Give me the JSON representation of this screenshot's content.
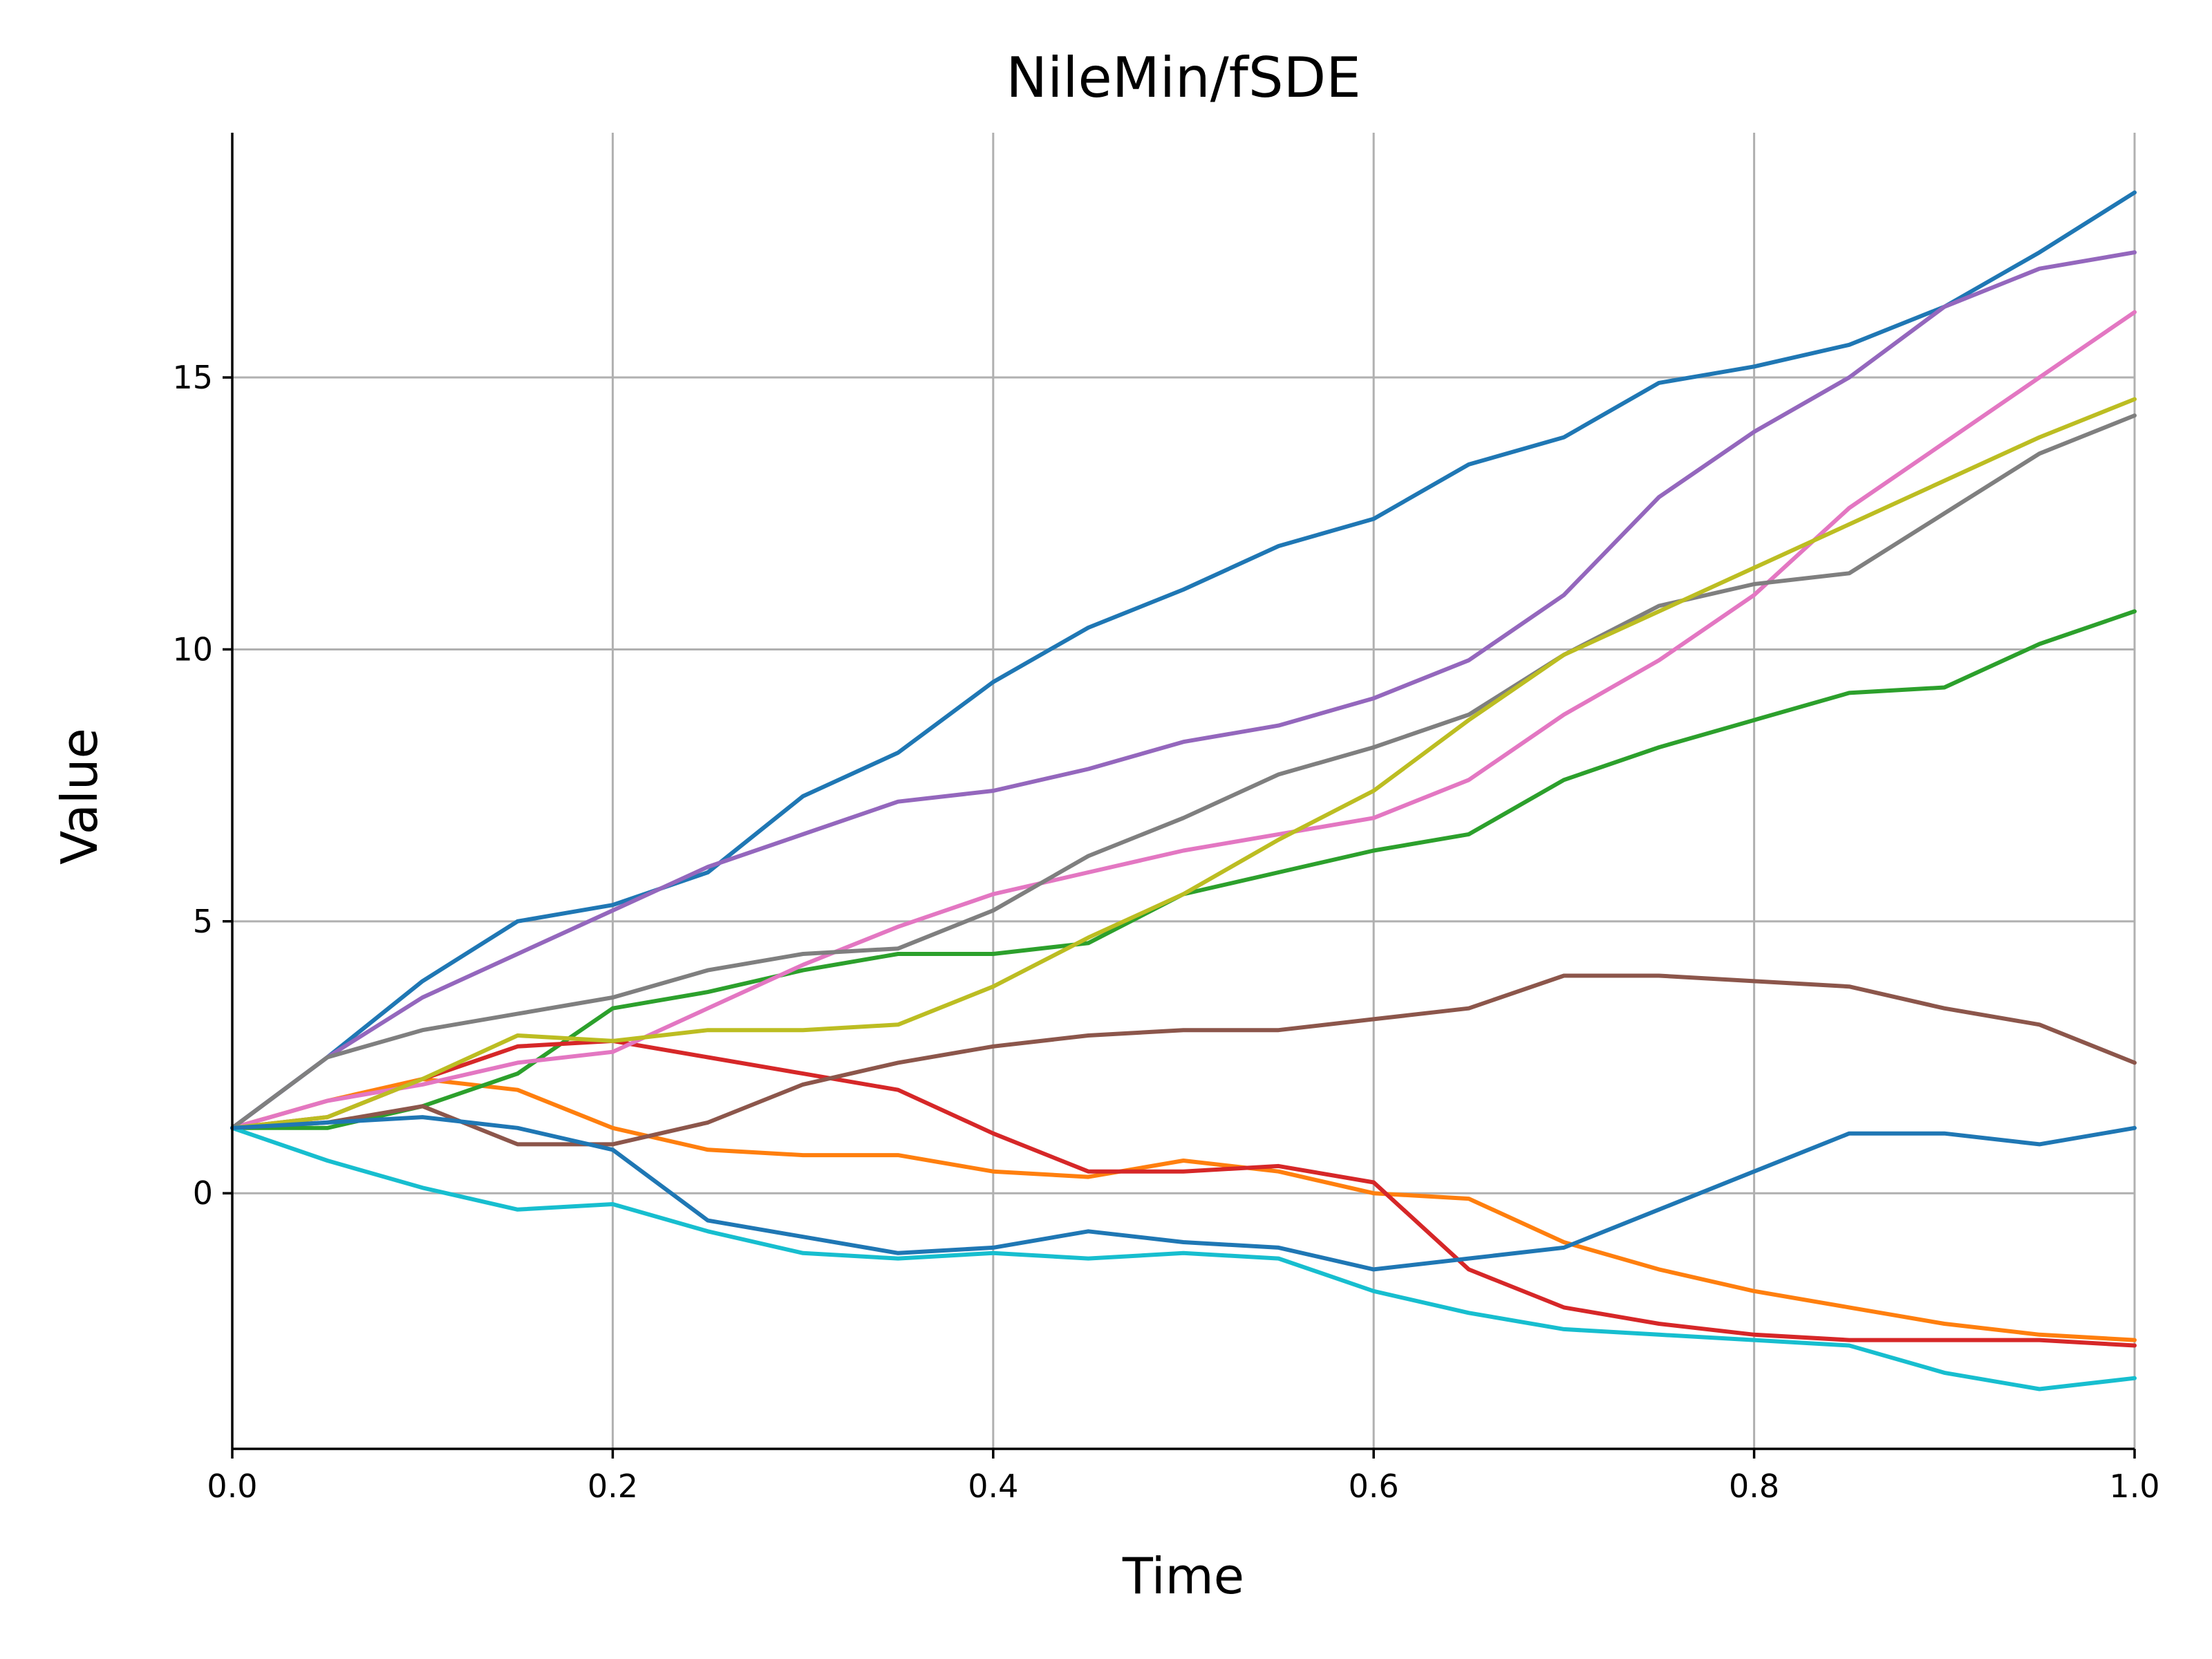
{
  "chart_data": {
    "type": "line",
    "title": "NileMin/fSDE",
    "xlabel": "Time",
    "ylabel": "Value",
    "xlim": [
      0.0,
      1.0
    ],
    "ylim": [
      -4.7,
      19.5
    ],
    "grid": true,
    "x_ticks": [
      {
        "value": 0.0,
        "label": "0.0"
      },
      {
        "value": 0.2,
        "label": "0.2"
      },
      {
        "value": 0.4,
        "label": "0.4"
      },
      {
        "value": 0.6,
        "label": "0.6"
      },
      {
        "value": 0.8,
        "label": "0.8"
      },
      {
        "value": 1.0,
        "label": "1.0"
      }
    ],
    "y_ticks": [
      {
        "value": 0,
        "label": "0"
      },
      {
        "value": 5,
        "label": "5"
      },
      {
        "value": 10,
        "label": "10"
      },
      {
        "value": 15,
        "label": "15"
      }
    ],
    "x": [
      0,
      0.05,
      0.1,
      0.15,
      0.2,
      0.25,
      0.3,
      0.35,
      0.4,
      0.45,
      0.5,
      0.55,
      0.6,
      0.65,
      0.7,
      0.75,
      0.8,
      0.85,
      0.9,
      0.95,
      1.0
    ],
    "series": [
      {
        "color": "#1f77b4",
        "values": [
          1.2,
          2.5,
          3.9,
          5.0,
          5.3,
          5.9,
          7.3,
          8.1,
          9.4,
          10.4,
          11.1,
          11.9,
          12.4,
          13.4,
          13.9,
          14.9,
          15.2,
          15.6,
          16.3,
          17.3,
          18.4
        ]
      },
      {
        "color": "#ff7f0e",
        "values": [
          1.2,
          1.7,
          2.1,
          1.9,
          1.2,
          0.8,
          0.7,
          0.7,
          0.4,
          0.3,
          0.6,
          0.4,
          0.0,
          -0.1,
          -0.9,
          -1.4,
          -1.8,
          -2.1,
          -2.4,
          -2.6,
          -2.7
        ]
      },
      {
        "color": "#2ca02c",
        "values": [
          1.2,
          1.2,
          1.6,
          2.2,
          3.4,
          3.7,
          4.1,
          4.4,
          4.4,
          4.6,
          5.5,
          5.9,
          6.3,
          6.6,
          7.6,
          8.2,
          8.7,
          9.2,
          9.3,
          10.1,
          10.7
        ]
      },
      {
        "color": "#d62728",
        "values": [
          1.2,
          1.4,
          2.1,
          2.7,
          2.8,
          2.5,
          2.2,
          1.9,
          1.1,
          0.4,
          0.4,
          0.5,
          0.2,
          -1.4,
          -2.1,
          -2.4,
          -2.6,
          -2.7,
          -2.7,
          -2.7,
          -2.8
        ]
      },
      {
        "color": "#9467bd",
        "values": [
          1.2,
          2.5,
          3.6,
          4.4,
          5.2,
          6.0,
          6.6,
          7.2,
          7.4,
          7.8,
          8.3,
          8.6,
          9.1,
          9.8,
          11.0,
          12.8,
          14.0,
          15.0,
          16.3,
          17.0,
          17.3
        ]
      },
      {
        "color": "#8c564b",
        "values": [
          1.2,
          1.3,
          1.6,
          0.9,
          0.9,
          1.3,
          2.0,
          2.4,
          2.7,
          2.9,
          3.0,
          3.0,
          3.2,
          3.4,
          4.0,
          4.0,
          3.9,
          3.8,
          3.4,
          3.1,
          2.4
        ]
      },
      {
        "color": "#e377c2",
        "values": [
          1.2,
          1.7,
          2.0,
          2.4,
          2.6,
          3.4,
          4.2,
          4.9,
          5.5,
          5.9,
          6.3,
          6.6,
          6.9,
          7.6,
          8.8,
          9.8,
          11.0,
          12.6,
          13.8,
          15.0,
          16.2
        ]
      },
      {
        "color": "#7f7f7f",
        "values": [
          1.2,
          2.5,
          3.0,
          3.3,
          3.6,
          4.1,
          4.4,
          4.5,
          5.2,
          6.2,
          6.9,
          7.7,
          8.2,
          8.8,
          9.9,
          10.8,
          11.2,
          11.4,
          12.5,
          13.6,
          14.3
        ]
      },
      {
        "color": "#bcbd22",
        "values": [
          1.2,
          1.4,
          2.1,
          2.9,
          2.8,
          3.0,
          3.0,
          3.1,
          3.8,
          4.7,
          5.5,
          6.5,
          7.4,
          8.7,
          9.9,
          10.7,
          11.5,
          12.3,
          13.1,
          13.9,
          14.6
        ]
      },
      {
        "color": "#17becf",
        "values": [
          1.2,
          0.6,
          0.1,
          -0.3,
          -0.2,
          -0.7,
          -1.1,
          -1.2,
          -1.1,
          -1.2,
          -1.1,
          -1.2,
          -1.8,
          -2.2,
          -2.5,
          -2.6,
          -2.7,
          -2.8,
          -3.3,
          -3.6,
          -3.4
        ]
      },
      {
        "color": "#1f77b4",
        "values": [
          1.2,
          1.3,
          1.4,
          1.2,
          0.8,
          -0.5,
          -0.8,
          -1.1,
          -1.0,
          -0.7,
          -0.9,
          -1.0,
          -1.4,
          -1.2,
          -1.0,
          -0.3,
          0.4,
          1.1,
          1.1,
          0.9,
          1.2
        ]
      }
    ]
  }
}
